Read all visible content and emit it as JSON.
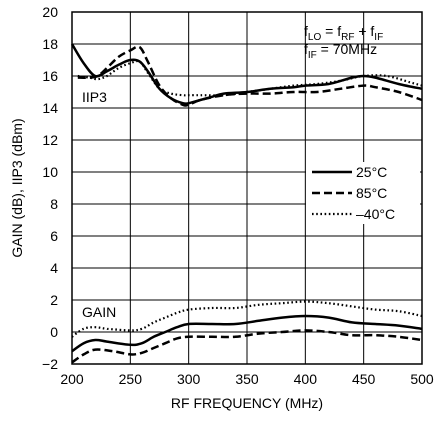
{
  "chart_data": {
    "type": "line",
    "xlabel": "RF FREQUENCY (MHz)",
    "ylabel": "GAIN (dB), IIP3 (dBm)",
    "xlim": [
      200,
      500
    ],
    "ylim": [
      -2,
      20
    ],
    "x_ticks": [
      200,
      250,
      300,
      350,
      400,
      450,
      500
    ],
    "y_ticks": [
      -2,
      0,
      2,
      4,
      6,
      8,
      10,
      12,
      14,
      16,
      18,
      20
    ],
    "grid": true,
    "annotations": {
      "iip3_label": "IIP3",
      "gain_label": "GAIN",
      "flo_main": "f",
      "flo_sub": "LO",
      "flo_eq": " = f",
      "frf_sub": "RF",
      "frf_plus": " + f",
      "fif_sub": "IF",
      "fif2_main": "f",
      "fif2_sub": "IF",
      "fif2_value": " = 70MHz"
    },
    "legend_position": "right",
    "series": [
      {
        "name": "25°C",
        "dash": "solid",
        "curves": [
          {
            "label": "IIP3",
            "x": [
              200,
              210,
              220,
              230,
              240,
              250,
              258,
              265,
              275,
              285,
              295,
              300,
              310,
              320,
              330,
              350,
              370,
              390,
              400,
              420,
              440,
              450,
              460,
              480,
              500
            ],
            "y": [
              18.0,
              16.8,
              16.0,
              16.3,
              16.7,
              17.0,
              16.9,
              16.3,
              15.2,
              14.6,
              14.3,
              14.3,
              14.5,
              14.7,
              14.9,
              15.0,
              15.2,
              15.3,
              15.4,
              15.5,
              15.9,
              16.0,
              15.9,
              15.5,
              15.2
            ]
          },
          {
            "label": "GAIN",
            "x": [
              200,
              210,
              220,
              230,
              250,
              260,
              270,
              280,
              290,
              300,
              320,
              340,
              360,
              380,
              400,
              420,
              440,
              460,
              480,
              500
            ],
            "y": [
              -1.2,
              -0.7,
              -0.5,
              -0.6,
              -0.8,
              -0.7,
              -0.3,
              0.0,
              0.3,
              0.5,
              0.5,
              0.5,
              0.7,
              0.9,
              1.0,
              0.9,
              0.6,
              0.5,
              0.4,
              0.2
            ]
          }
        ]
      },
      {
        "name": "85°C",
        "dash": "dashed",
        "curves": [
          {
            "label": "IIP3",
            "x": [
              205,
              215,
              222,
              230,
              240,
              250,
              258,
              265,
              275,
              285,
              295,
              300,
              310,
              330,
              350,
              370,
              390,
              410,
              430,
              450,
              460,
              480,
              500
            ],
            "y": [
              15.9,
              15.9,
              16.0,
              16.5,
              17.2,
              17.6,
              17.8,
              16.9,
              15.4,
              14.6,
              14.2,
              14.2,
              14.5,
              14.8,
              14.9,
              14.9,
              15.0,
              15.0,
              15.2,
              15.4,
              15.3,
              15.0,
              14.5
            ]
          },
          {
            "label": "GAIN",
            "x": [
              200,
              210,
              220,
              235,
              250,
              260,
              270,
              280,
              290,
              300,
              320,
              340,
              360,
              380,
              400,
              420,
              440,
              460,
              480,
              500
            ],
            "y": [
              -1.9,
              -1.4,
              -1.1,
              -1.2,
              -1.4,
              -1.3,
              -1.0,
              -0.7,
              -0.4,
              -0.3,
              -0.3,
              -0.3,
              -0.1,
              0.0,
              0.1,
              0.0,
              -0.2,
              -0.2,
              -0.3,
              -0.5
            ]
          }
        ]
      },
      {
        "name": "–40°C",
        "dash": "dotted",
        "curves": [
          {
            "label": "IIP3",
            "x": [
              205,
              215,
              222,
              230,
              240,
              250,
              258,
              265,
              275,
              285,
              295,
              300,
              310,
              330,
              350,
              370,
              390,
              410,
              430,
              450,
              470,
              490,
              500
            ],
            "y": [
              16.0,
              15.9,
              15.8,
              16.0,
              16.5,
              16.8,
              16.9,
              16.2,
              15.2,
              14.9,
              14.8,
              14.8,
              14.8,
              14.8,
              15.0,
              15.2,
              15.4,
              15.5,
              15.7,
              16.0,
              16.0,
              15.6,
              15.4
            ]
          },
          {
            "label": "GAIN",
            "x": [
              200,
              210,
              220,
              230,
              250,
              260,
              270,
              280,
              290,
              300,
              320,
              340,
              360,
              380,
              400,
              420,
              440,
              460,
              480,
              500
            ],
            "y": [
              -0.3,
              0.2,
              0.3,
              0.2,
              0.1,
              0.2,
              0.6,
              0.9,
              1.2,
              1.4,
              1.5,
              1.5,
              1.7,
              1.8,
              1.9,
              1.8,
              1.6,
              1.4,
              1.3,
              1.0
            ]
          }
        ]
      }
    ]
  }
}
